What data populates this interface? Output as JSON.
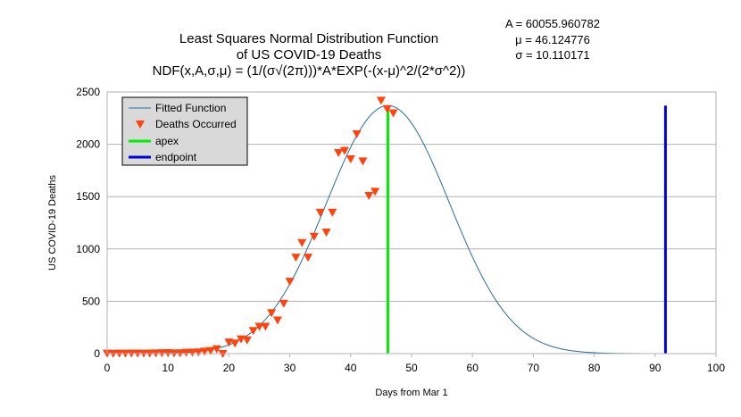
{
  "chart_data": {
    "type": "line",
    "title_lines": [
      "Least Squares Normal Distribution Function",
      "of US COVID-19 Deaths",
      "NDF(x,A,σ,μ) = (1/(σ√(2π)))*A*EXP(-(x-μ)^2/(2*σ^2))"
    ],
    "parameters": [
      "A = 60055.960782",
      "μ = 46.124776",
      "σ = 10.110171"
    ],
    "xlabel": "Days from Mar 1",
    "ylabel": "US COVID-19 Deaths",
    "xlim": [
      0,
      100
    ],
    "ylim": [
      0,
      2500
    ],
    "x_ticks": [
      0,
      10,
      20,
      30,
      40,
      50,
      60,
      70,
      80,
      90,
      100
    ],
    "y_ticks": [
      0,
      500,
      1000,
      1500,
      2000,
      2500
    ],
    "grid": "horizontal",
    "legend_position": "top-left",
    "fit": {
      "A": 60055.960782,
      "mu": 46.124776,
      "sigma": 10.110171,
      "x_range": [
        0,
        90
      ]
    },
    "series": [
      {
        "name": "Fitted Function",
        "kind": "line",
        "color": "#2a6a9e"
      },
      {
        "name": "Deaths Occurred",
        "kind": "marker",
        "color": "#ff420e",
        "x": [
          0,
          1,
          2,
          3,
          4,
          5,
          6,
          7,
          8,
          9,
          10,
          11,
          12,
          13,
          14,
          15,
          16,
          17,
          18,
          19,
          20,
          21,
          22,
          23,
          24,
          25,
          26,
          27,
          28,
          29,
          30,
          31,
          32,
          33,
          34,
          35,
          36,
          37,
          38,
          39,
          40,
          41,
          42,
          43,
          44,
          45,
          46,
          47
        ],
        "y": [
          3,
          2,
          3,
          3,
          4,
          4,
          3,
          4,
          5,
          7,
          8,
          5,
          6,
          12,
          13,
          15,
          22,
          28,
          45,
          0,
          110,
          100,
          140,
          130,
          220,
          260,
          260,
          390,
          320,
          480,
          690,
          920,
          1060,
          920,
          1120,
          1350,
          1160,
          1350,
          1920,
          1940,
          1860,
          2100,
          1840,
          1510,
          1550,
          2420,
          2340,
          2300
        ]
      },
      {
        "name": "apex",
        "kind": "vline",
        "color": "#00ee00",
        "x": 46.12,
        "y_top": 2370
      },
      {
        "name": "endpoint",
        "kind": "vline",
        "color": "#0000dd",
        "x": 91.7,
        "y_top": 2370
      }
    ]
  }
}
